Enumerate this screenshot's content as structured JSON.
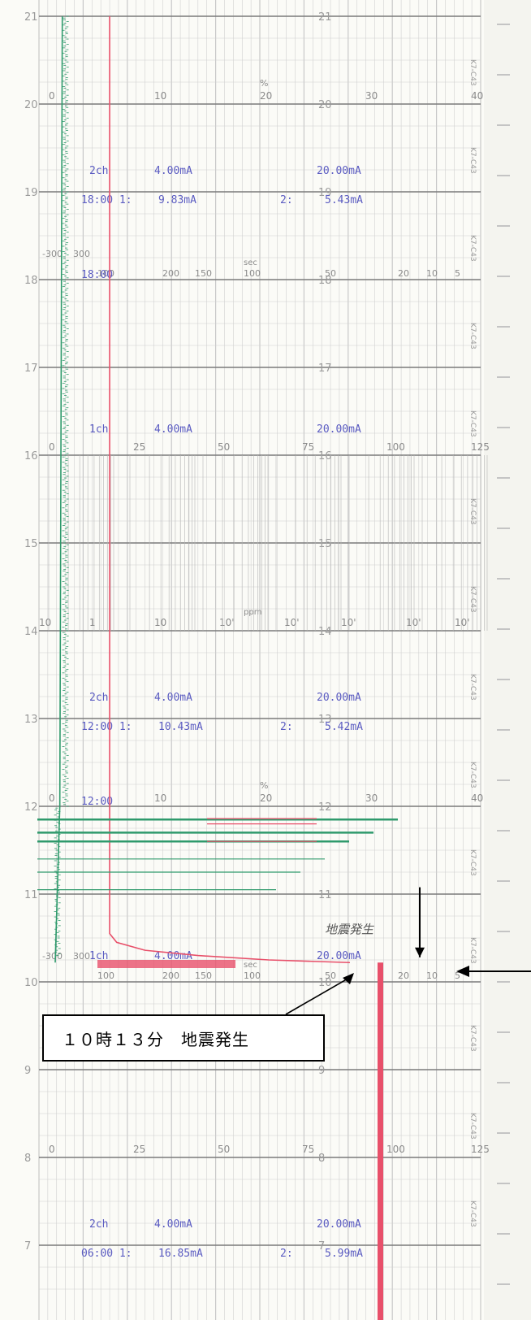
{
  "chart_data": {
    "type": "line",
    "title": "",
    "hour_labels": [
      "21",
      "20",
      "19",
      "18",
      "17",
      "16",
      "15",
      "14",
      "13",
      "12",
      "11",
      "10",
      "9",
      "8",
      "7"
    ],
    "model_tag": "K7-C43",
    "scales": {
      "pct_40": [
        "0",
        "10",
        "20",
        "30",
        "40"
      ],
      "pct_125": [
        "0",
        "25",
        "50",
        "75",
        "100",
        "125"
      ],
      "ppm_log": [
        "10",
        "1",
        "10",
        "10'",
        "10'",
        "10'",
        "10'",
        "10'"
      ],
      "sec": [
        "-300",
        "300",
        "100",
        "200",
        "150",
        "100",
        "50",
        "20",
        "10",
        "5"
      ],
      "percent_unit": "%",
      "sec_unit": "sec",
      "ppm_unit": "ppm"
    },
    "printouts": [
      {
        "hour": "18",
        "text_ch": "2ch",
        "low": "4.00mA",
        "high": "20.00mA",
        "line2_time": "18:00 1:",
        "line2_v1": "9.83mA",
        "line2_c2": "2:",
        "line2_v2": "5.43mA",
        "marker": "18:00"
      },
      {
        "hour": "16",
        "text_ch": "1ch",
        "low": "4.00mA",
        "high": "20.00mA"
      },
      {
        "hour": "12",
        "text_ch": "2ch",
        "low": "4.00mA",
        "high": "20.00mA",
        "line2_time": "12:00 1:",
        "line2_v1": "10.43mA",
        "line2_c2": "2:",
        "line2_v2": "5.42mA",
        "marker": "12:00"
      },
      {
        "hour": "10",
        "text_ch": "1ch",
        "low": "4.00mA",
        "high": "20.00mA"
      },
      {
        "hour": "6",
        "text_ch": "2ch",
        "low": "4.00mA",
        "high": "20.00mA",
        "line2_time": "06:00 1:",
        "line2_v1": "16.85mA",
        "line2_c2": "2:",
        "line2_v2": "5.99mA"
      }
    ],
    "series": [
      {
        "name": "1ch",
        "color": "#e8506a",
        "points": [
          [
            21.0,
            20.0
          ],
          [
            10.55,
            20.0
          ],
          [
            10.45,
            22.0
          ],
          [
            10.36,
            30.0
          ],
          [
            10.3,
            45.0
          ],
          [
            10.25,
            65.0
          ],
          [
            10.22,
            88.0
          ]
        ]
      },
      {
        "name": "2ch",
        "color": "#2f9a6c",
        "points": [
          [
            21.0,
            6.6
          ],
          [
            12.0,
            5.9
          ],
          [
            10.22,
            4.6
          ]
        ]
      }
    ],
    "handwritten_note": "地震発生",
    "annotation": "１０時１３分　地震発生",
    "colors": {
      "pink": "#e8506a",
      "green": "#2f9a6c",
      "grid": "#9a9a9a",
      "print": "#5b5cc2"
    }
  }
}
